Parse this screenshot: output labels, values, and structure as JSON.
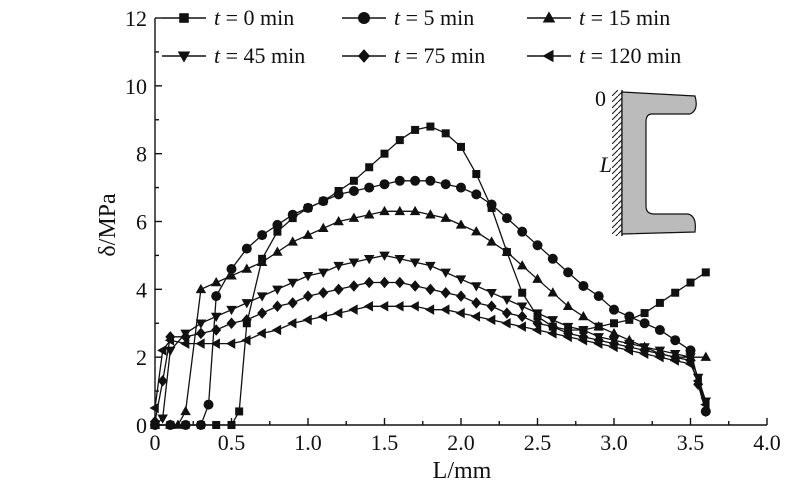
{
  "chart_data": {
    "type": "line",
    "title": "",
    "xlabel": "L/mm",
    "ylabel": "δ/MPa",
    "xlim": [
      0,
      4.0
    ],
    "ylim": [
      0,
      12
    ],
    "xticks": [
      "0",
      "0.5",
      "1.0",
      "1.5",
      "2.0",
      "2.5",
      "3.0",
      "3.5",
      "4.0"
    ],
    "yticks": [
      "0",
      "2",
      "4",
      "6",
      "8",
      "10",
      "12"
    ],
    "legend_position": "top",
    "inset": {
      "top_label": "0",
      "side_label": "L"
    },
    "series": [
      {
        "name": "t = 0 min",
        "marker": "square",
        "x": [
          0,
          0.1,
          0.2,
          0.3,
          0.4,
          0.5,
          0.55,
          0.6,
          0.7,
          0.8,
          0.9,
          1.0,
          1.1,
          1.2,
          1.3,
          1.4,
          1.5,
          1.6,
          1.7,
          1.8,
          1.9,
          2.0,
          2.1,
          2.2,
          2.3,
          2.4,
          2.5,
          2.6,
          2.7,
          2.8,
          2.9,
          3.0,
          3.1,
          3.2,
          3.3,
          3.4,
          3.5,
          3.6
        ],
        "y": [
          0,
          0,
          0,
          0,
          0,
          0,
          0.4,
          3.0,
          4.9,
          5.7,
          6.1,
          6.4,
          6.6,
          6.9,
          7.2,
          7.6,
          8.0,
          8.4,
          8.7,
          8.8,
          8.6,
          8.2,
          7.4,
          6.4,
          5.1,
          3.9,
          3.2,
          2.9,
          2.8,
          2.8,
          2.9,
          3.0,
          3.1,
          3.3,
          3.6,
          3.9,
          4.2,
          4.5
        ]
      },
      {
        "name": "t = 5 min",
        "marker": "circle",
        "x": [
          0,
          0.1,
          0.2,
          0.3,
          0.35,
          0.4,
          0.5,
          0.6,
          0.7,
          0.8,
          0.9,
          1.0,
          1.1,
          1.2,
          1.3,
          1.4,
          1.5,
          1.6,
          1.7,
          1.8,
          1.9,
          2.0,
          2.1,
          2.2,
          2.3,
          2.4,
          2.5,
          2.6,
          2.7,
          2.8,
          2.9,
          3.0,
          3.1,
          3.2,
          3.3,
          3.4,
          3.5,
          3.6
        ],
        "y": [
          0,
          0,
          0,
          0,
          0.6,
          3.8,
          4.6,
          5.2,
          5.6,
          5.9,
          6.2,
          6.4,
          6.6,
          6.8,
          6.9,
          7.0,
          7.1,
          7.2,
          7.2,
          7.2,
          7.1,
          7.0,
          6.8,
          6.5,
          6.1,
          5.7,
          5.3,
          4.9,
          4.5,
          4.1,
          3.8,
          3.4,
          3.2,
          3.0,
          2.8,
          2.5,
          2.2,
          0.4
        ]
      },
      {
        "name": "t = 15 min",
        "marker": "triangle-up",
        "x": [
          0,
          0.1,
          0.15,
          0.2,
          0.3,
          0.4,
          0.5,
          0.6,
          0.7,
          0.8,
          0.9,
          1.0,
          1.1,
          1.2,
          1.3,
          1.4,
          1.5,
          1.6,
          1.7,
          1.8,
          1.9,
          2.0,
          2.1,
          2.2,
          2.3,
          2.4,
          2.5,
          2.6,
          2.7,
          2.8,
          2.9,
          3.0,
          3.1,
          3.2,
          3.3,
          3.4,
          3.5,
          3.6
        ],
        "y": [
          0,
          0,
          0,
          0.4,
          4.0,
          4.2,
          4.4,
          4.6,
          4.8,
          5.1,
          5.4,
          5.6,
          5.8,
          6.0,
          6.1,
          6.2,
          6.3,
          6.3,
          6.3,
          6.2,
          6.1,
          5.9,
          5.7,
          5.4,
          5.1,
          4.7,
          4.3,
          3.9,
          3.5,
          3.2,
          2.9,
          2.7,
          2.5,
          2.3,
          2.1,
          2.0,
          2.0,
          2.0
        ]
      },
      {
        "name": "t = 45 min",
        "marker": "triangle-down",
        "x": [
          0,
          0.05,
          0.1,
          0.2,
          0.3,
          0.4,
          0.5,
          0.6,
          0.7,
          0.8,
          0.9,
          1.0,
          1.1,
          1.2,
          1.3,
          1.4,
          1.5,
          1.6,
          1.7,
          1.8,
          1.9,
          2.0,
          2.1,
          2.2,
          2.3,
          2.4,
          2.5,
          2.6,
          2.7,
          2.8,
          2.9,
          3.0,
          3.1,
          3.2,
          3.3,
          3.4,
          3.5,
          3.55,
          3.6
        ],
        "y": [
          0,
          0.2,
          2.2,
          2.7,
          3.0,
          3.2,
          3.4,
          3.6,
          3.8,
          4.0,
          4.2,
          4.4,
          4.5,
          4.7,
          4.8,
          4.9,
          5.0,
          4.9,
          4.8,
          4.7,
          4.5,
          4.3,
          4.1,
          3.9,
          3.7,
          3.5,
          3.3,
          3.1,
          2.9,
          2.8,
          2.6,
          2.5,
          2.4,
          2.3,
          2.2,
          2.1,
          2.0,
          1.4,
          0.7
        ]
      },
      {
        "name": "t = 75 min",
        "marker": "diamond",
        "x": [
          0,
          0.05,
          0.1,
          0.2,
          0.3,
          0.4,
          0.5,
          0.6,
          0.7,
          0.8,
          0.9,
          1.0,
          1.1,
          1.2,
          1.3,
          1.4,
          1.5,
          1.6,
          1.7,
          1.8,
          1.9,
          2.0,
          2.1,
          2.2,
          2.3,
          2.4,
          2.5,
          2.6,
          2.7,
          2.8,
          2.9,
          3.0,
          3.1,
          3.2,
          3.3,
          3.4,
          3.5,
          3.55,
          3.6
        ],
        "y": [
          0.1,
          1.3,
          2.6,
          2.6,
          2.7,
          2.8,
          3.0,
          3.1,
          3.3,
          3.5,
          3.6,
          3.8,
          3.9,
          4.0,
          4.1,
          4.2,
          4.2,
          4.2,
          4.1,
          4.0,
          3.9,
          3.8,
          3.6,
          3.5,
          3.3,
          3.2,
          3.0,
          2.9,
          2.7,
          2.6,
          2.5,
          2.4,
          2.3,
          2.2,
          2.1,
          2.0,
          1.9,
          1.2,
          0.4
        ]
      },
      {
        "name": "t = 120 min",
        "marker": "triangle-left",
        "x": [
          0,
          0.05,
          0.1,
          0.2,
          0.3,
          0.4,
          0.5,
          0.6,
          0.7,
          0.8,
          0.9,
          1.0,
          1.1,
          1.2,
          1.3,
          1.4,
          1.5,
          1.6,
          1.7,
          1.8,
          1.9,
          2.0,
          2.1,
          2.2,
          2.3,
          2.4,
          2.5,
          2.6,
          2.7,
          2.8,
          2.9,
          3.0,
          3.1,
          3.2,
          3.3,
          3.4,
          3.5,
          3.55,
          3.6
        ],
        "y": [
          0.5,
          2.2,
          2.5,
          2.4,
          2.4,
          2.4,
          2.4,
          2.5,
          2.7,
          2.8,
          3.0,
          3.1,
          3.2,
          3.3,
          3.4,
          3.5,
          3.5,
          3.5,
          3.5,
          3.4,
          3.4,
          3.3,
          3.2,
          3.1,
          3.0,
          2.9,
          2.8,
          2.7,
          2.6,
          2.5,
          2.4,
          2.3,
          2.2,
          2.1,
          2.0,
          1.9,
          1.8,
          1.3,
          0.6
        ]
      }
    ]
  }
}
